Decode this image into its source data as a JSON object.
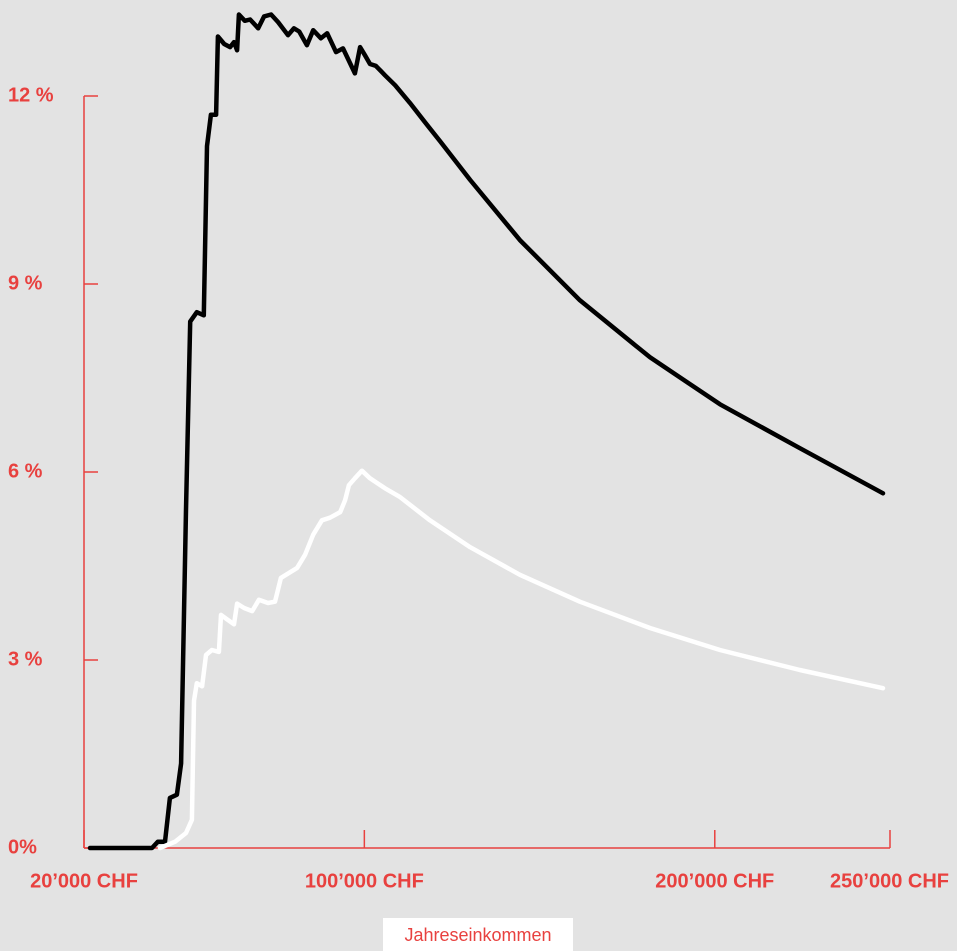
{
  "chart_data": {
    "type": "line",
    "xlabel": "Jahreseinkommen",
    "xlim": [
      20000,
      250000
    ],
    "ylim": [
      0,
      12
    ],
    "xticks": [
      {
        "value": 20000,
        "label": "20’000 CHF"
      },
      {
        "value": 100000,
        "label": "100’000 CHF"
      },
      {
        "value": 200000,
        "label": "200’000 CHF"
      },
      {
        "value": 250000,
        "label": "250’000 CHF"
      }
    ],
    "yticks": [
      {
        "value": 0,
        "label": "0%"
      },
      {
        "value": 3,
        "label": "3 %"
      },
      {
        "value": 6,
        "label": "6 %"
      },
      {
        "value": 9,
        "label": "9 %"
      },
      {
        "value": 12,
        "label": "12 %"
      }
    ],
    "axis_color": "#e8413f",
    "series": [
      {
        "color": "#000000",
        "x": [
          21700,
          39400,
          41100,
          43100,
          44500,
          46500,
          47700,
          49100,
          50300,
          52200,
          54200,
          55100,
          56200,
          57700,
          58200,
          60000,
          61700,
          62800,
          63700,
          64200,
          65900,
          67400,
          69700,
          71400,
          73400,
          75400,
          78200,
          79900,
          81400,
          83600,
          85400,
          87600,
          89400,
          91900,
          93900,
          97300,
          98800,
          100200,
          101600,
          103300,
          105900,
          108800,
          113000,
          117300,
          121600,
          130200,
          144400,
          161500,
          181500,
          201500,
          224300,
          248000
        ],
        "values": [
          0,
          0,
          0.1,
          0.1,
          0.8,
          0.85,
          1.35,
          5.4,
          8.4,
          8.55,
          8.5,
          11.2,
          11.7,
          11.7,
          12.95,
          12.83,
          12.78,
          12.86,
          12.73,
          13.3,
          13.2,
          13.22,
          13.08,
          13.27,
          13.3,
          13.18,
          12.97,
          13.08,
          13.03,
          12.81,
          13.05,
          12.92,
          13.0,
          12.7,
          12.76,
          12.36,
          12.78,
          12.65,
          12.51,
          12.48,
          12.33,
          12.17,
          11.89,
          11.58,
          11.28,
          10.66,
          9.7,
          8.74,
          7.83,
          7.08,
          6.38,
          5.66
        ]
      },
      {
        "color": "#ffffff",
        "x": [
          41700,
          46000,
          49100,
          50800,
          51400,
          52200,
          53700,
          54800,
          56500,
          58500,
          59100,
          60800,
          62800,
          63700,
          65700,
          68000,
          69900,
          72500,
          74500,
          76200,
          78500,
          80800,
          83100,
          85400,
          87900,
          90200,
          93100,
          94500,
          95600,
          97300,
          99300,
          101600,
          105900,
          110200,
          118700,
          130200,
          144400,
          161500,
          181500,
          201500,
          224300,
          248000
        ],
        "values": [
          0,
          0.1,
          0.24,
          0.45,
          2.35,
          2.63,
          2.58,
          3.08,
          3.16,
          3.13,
          3.72,
          3.65,
          3.57,
          3.9,
          3.83,
          3.78,
          3.96,
          3.91,
          3.93,
          4.31,
          4.39,
          4.47,
          4.68,
          5.0,
          5.23,
          5.27,
          5.36,
          5.55,
          5.79,
          5.9,
          6.02,
          5.9,
          5.74,
          5.6,
          5.23,
          4.8,
          4.36,
          3.93,
          3.51,
          3.16,
          2.84,
          2.55
        ]
      }
    ]
  }
}
